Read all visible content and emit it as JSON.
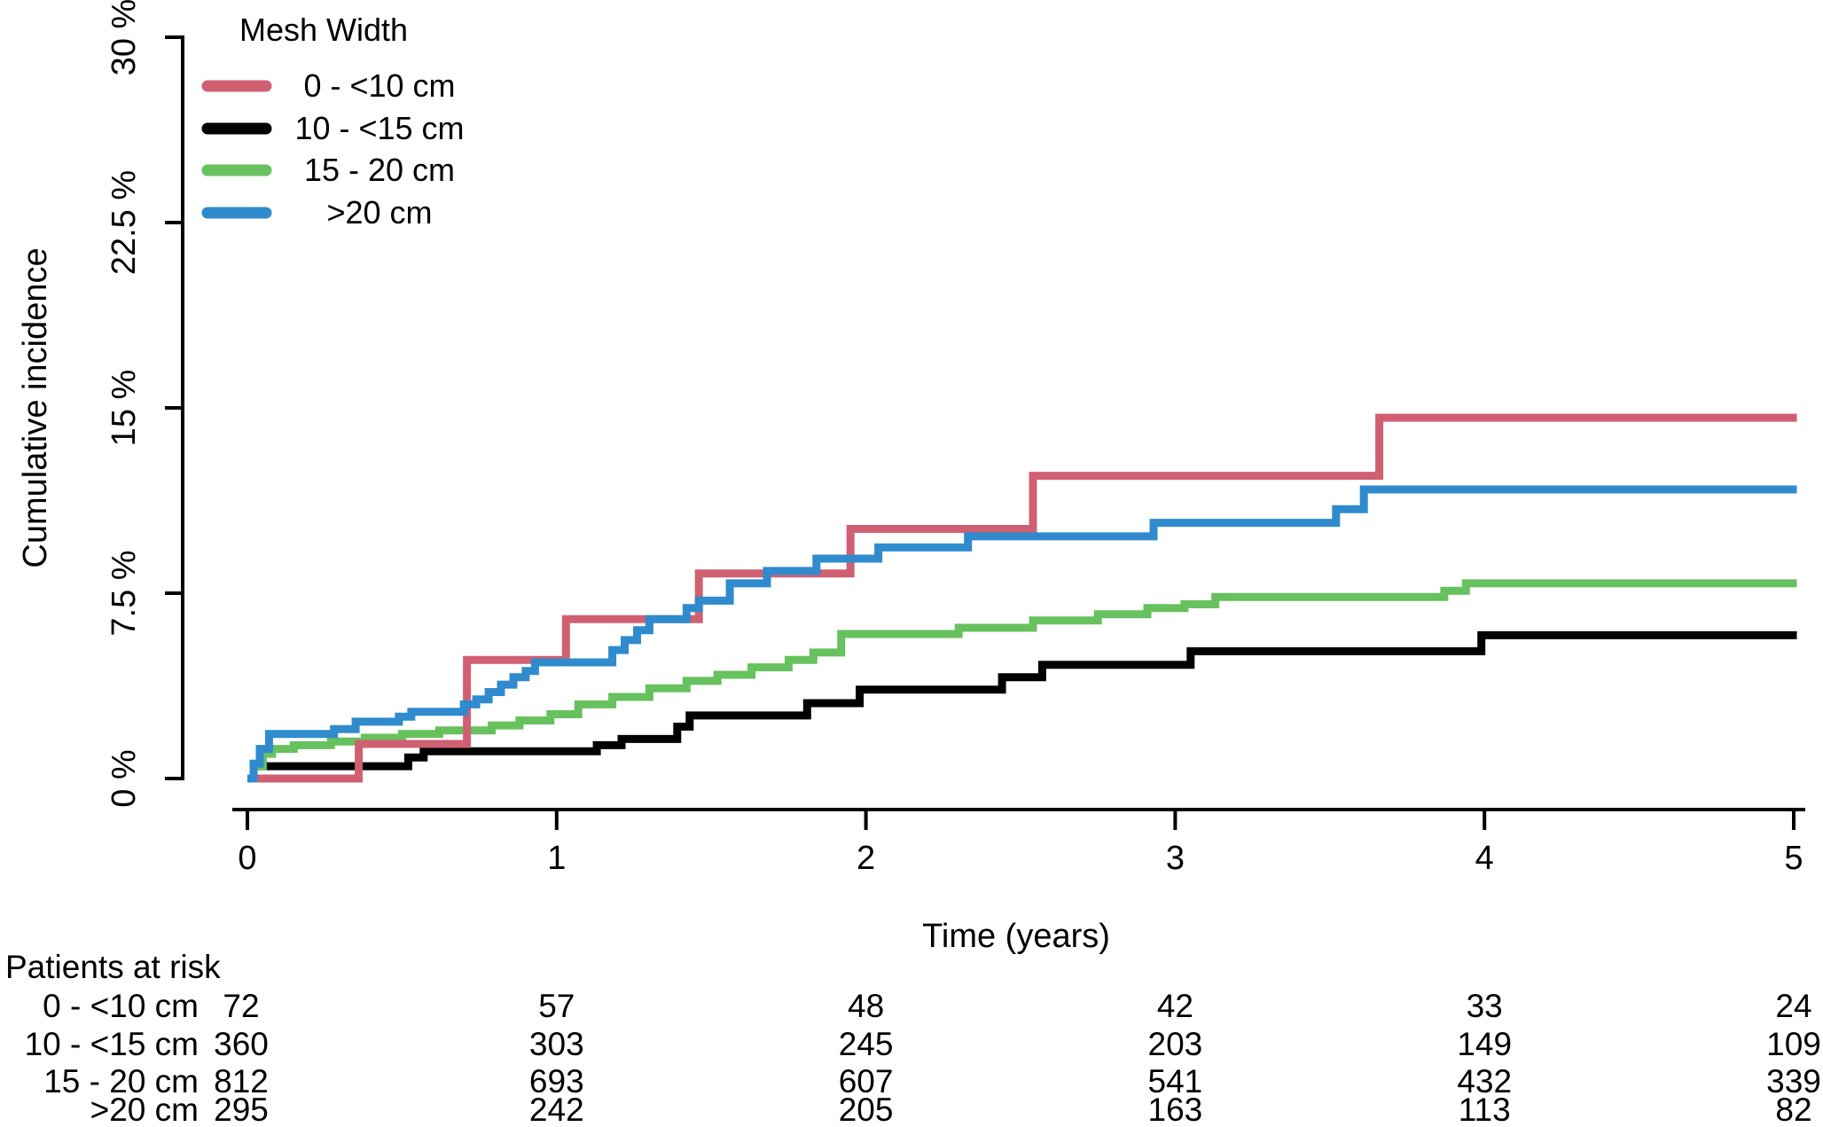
{
  "chart_data": {
    "type": "line",
    "subtype": "step-function-cumulative-incidence",
    "title": "",
    "xlabel": "Time (years)",
    "ylabel": "Cumulative incidence",
    "xlim": [
      0,
      5.02
    ],
    "ylim": [
      0,
      30
    ],
    "grid": "off",
    "x_ticks": [
      {
        "value": 0,
        "label": "0"
      },
      {
        "value": 1,
        "label": "1"
      },
      {
        "value": 2,
        "label": "2"
      },
      {
        "value": 3,
        "label": "3"
      },
      {
        "value": 4,
        "label": "4"
      },
      {
        "value": 5,
        "label": "5"
      }
    ],
    "y_ticks": [
      {
        "value": 0,
        "label": "0 %"
      },
      {
        "value": 7.5,
        "label": "7.5 %"
      },
      {
        "value": 15,
        "label": "15 %"
      },
      {
        "value": 22.5,
        "label": "22.5 %"
      },
      {
        "value": 30,
        "label": "30 %"
      }
    ],
    "legend": {
      "title": "Mesh Width",
      "position": "top-left"
    },
    "series": [
      {
        "name": "0 - <10 cm",
        "color": "#d15f72",
        "steps_time_percent": [
          [
            0.03,
            0
          ],
          [
            0.36,
            1.4
          ],
          [
            0.71,
            4.8
          ],
          [
            1.03,
            6.45
          ],
          [
            1.46,
            8.3
          ],
          [
            1.95,
            10.1
          ],
          [
            2.54,
            12.25
          ],
          [
            3.66,
            14.6
          ]
        ],
        "end_time": 5.01
      },
      {
        "name": "10 - <15 cm",
        "color": "#000000",
        "steps_time_percent": [
          [
            0.01,
            0
          ],
          [
            0.02,
            0.5
          ],
          [
            0.52,
            0.85
          ],
          [
            0.57,
            1.1
          ],
          [
            1.13,
            1.35
          ],
          [
            1.21,
            1.6
          ],
          [
            1.39,
            2.1
          ],
          [
            1.43,
            2.55
          ],
          [
            1.81,
            3.05
          ],
          [
            1.98,
            3.6
          ],
          [
            2.44,
            4.1
          ],
          [
            2.57,
            4.6
          ],
          [
            3.05,
            5.15
          ],
          [
            3.99,
            5.8
          ]
        ],
        "end_time": 5.01
      },
      {
        "name": "15 - 20 cm",
        "color": "#67c15e",
        "steps_time_percent": [
          [
            0.01,
            0
          ],
          [
            0.02,
            0.5
          ],
          [
            0.05,
            1.0
          ],
          [
            0.08,
            1.2
          ],
          [
            0.15,
            1.35
          ],
          [
            0.27,
            1.5
          ],
          [
            0.38,
            1.65
          ],
          [
            0.5,
            1.8
          ],
          [
            0.62,
            1.95
          ],
          [
            0.79,
            2.15
          ],
          [
            0.88,
            2.35
          ],
          [
            0.98,
            2.6
          ],
          [
            1.07,
            3.0
          ],
          [
            1.18,
            3.3
          ],
          [
            1.3,
            3.65
          ],
          [
            1.42,
            3.95
          ],
          [
            1.52,
            4.2
          ],
          [
            1.63,
            4.5
          ],
          [
            1.75,
            4.8
          ],
          [
            1.83,
            5.1
          ],
          [
            1.92,
            5.85
          ],
          [
            2.3,
            6.1
          ],
          [
            2.54,
            6.4
          ],
          [
            2.75,
            6.65
          ],
          [
            2.91,
            6.9
          ],
          [
            3.03,
            7.05
          ],
          [
            3.13,
            7.35
          ],
          [
            3.87,
            7.6
          ],
          [
            3.94,
            7.9
          ]
        ],
        "end_time": 5.01
      },
      {
        "name": ">20 cm",
        "color": "#2f8bcd",
        "steps_time_percent": [
          [
            0.0,
            0
          ],
          [
            0.02,
            0.6
          ],
          [
            0.04,
            1.2
          ],
          [
            0.07,
            1.8
          ],
          [
            0.28,
            2.0
          ],
          [
            0.35,
            2.3
          ],
          [
            0.49,
            2.5
          ],
          [
            0.53,
            2.7
          ],
          [
            0.7,
            3.0
          ],
          [
            0.74,
            3.2
          ],
          [
            0.78,
            3.5
          ],
          [
            0.82,
            3.8
          ],
          [
            0.86,
            4.1
          ],
          [
            0.9,
            4.35
          ],
          [
            0.93,
            4.7
          ],
          [
            1.18,
            5.2
          ],
          [
            1.22,
            5.6
          ],
          [
            1.26,
            6.0
          ],
          [
            1.3,
            6.45
          ],
          [
            1.42,
            6.9
          ],
          [
            1.46,
            7.2
          ],
          [
            1.56,
            7.9
          ],
          [
            1.68,
            8.4
          ],
          [
            1.84,
            8.9
          ],
          [
            2.04,
            9.35
          ],
          [
            2.33,
            9.8
          ],
          [
            2.93,
            10.35
          ],
          [
            3.52,
            10.9
          ],
          [
            3.61,
            11.7
          ]
        ],
        "end_time": 5.01
      }
    ],
    "risk_table": {
      "title": "Patients at risk",
      "time_points": [
        0,
        1,
        2,
        3,
        4,
        5
      ],
      "rows": [
        {
          "label": "0 - <10 cm",
          "color": "#d15f72",
          "values": [
            72,
            57,
            48,
            42,
            33,
            24
          ]
        },
        {
          "label": "10 - <15 cm",
          "color": "#000000",
          "values": [
            360,
            303,
            245,
            203,
            149,
            109
          ]
        },
        {
          "label": "15 - 20 cm",
          "color": "#67c15e",
          "values": [
            812,
            693,
            607,
            541,
            432,
            339
          ]
        },
        {
          "label": ">20 cm",
          "color": "#2f8bcd",
          "values": [
            295,
            242,
            205,
            163,
            113,
            82
          ]
        }
      ]
    }
  }
}
